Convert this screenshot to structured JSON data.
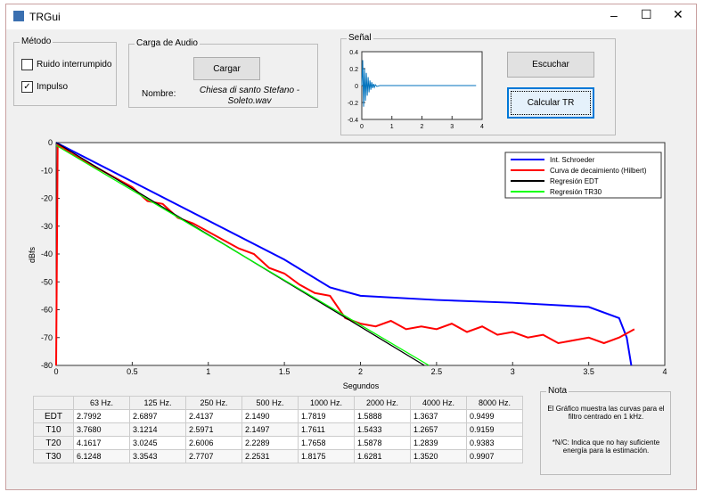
{
  "window": {
    "title": "TRGui"
  },
  "metodo": {
    "title": "Método",
    "options": [
      {
        "label": "Ruido interrumpido",
        "checked": false
      },
      {
        "label": "Impulso",
        "checked": true
      }
    ]
  },
  "audio": {
    "title": "Carga de Audio",
    "button": "Cargar",
    "name_label": "Nombre:",
    "name_value": "Chiesa di santo Stefano - Soleto.wav"
  },
  "signal": {
    "title": "Señal",
    "xlim": [
      0,
      4
    ],
    "xticks": [
      0,
      1,
      2,
      3,
      4
    ],
    "ylim": [
      -0.4,
      0.4
    ],
    "yticks": [
      -0.4,
      -0.2,
      0,
      0.2,
      0.4
    ],
    "color": "#0072bd",
    "x": [
      0,
      0.03,
      0.06,
      0.09,
      0.12,
      0.15,
      0.18,
      0.21,
      0.24,
      0.27,
      0.3,
      0.33,
      0.36,
      0.39,
      0.42,
      0.45,
      0.5,
      0.6,
      1,
      2,
      3,
      3.8
    ],
    "values": [
      0,
      0.3,
      -0.25,
      0.2,
      -0.18,
      0.15,
      -0.12,
      0.1,
      -0.08,
      0.06,
      -0.05,
      0.04,
      -0.03,
      0.02,
      -0.02,
      0.01,
      -0.01,
      0,
      0,
      0,
      0,
      0
    ]
  },
  "buttons": [
    "Escuchar",
    "Calcular TR"
  ],
  "main_plot": {
    "xlabel": "Segundos",
    "ylabel": "dBfs",
    "xlim": [
      0,
      4
    ],
    "xticks": [
      0,
      0.5,
      1,
      1.5,
      2,
      2.5,
      3,
      3.5,
      4
    ],
    "ylim": [
      -80,
      0
    ],
    "yticks": [
      -80,
      -70,
      -60,
      -50,
      -40,
      -30,
      -20,
      -10,
      0
    ],
    "series": [
      {
        "name": "Int. Schroeder",
        "color": "#0000ff",
        "x": [
          0,
          0.5,
          1,
          1.5,
          1.8,
          2,
          2.5,
          3,
          3.5,
          3.7,
          3.75,
          3.78
        ],
        "values": [
          0,
          -14,
          -28,
          -42,
          -52,
          -55,
          -56.5,
          -57.5,
          -59,
          -63,
          -70,
          -80
        ]
      },
      {
        "name": "Curva de decaimiento (Hilbert)",
        "color": "#ff0000",
        "x": [
          0,
          0.01,
          0.05,
          0.1,
          0.2,
          0.3,
          0.4,
          0.5,
          0.6,
          0.7,
          0.8,
          0.9,
          1,
          1.1,
          1.2,
          1.3,
          1.4,
          1.5,
          1.6,
          1.7,
          1.8,
          1.9,
          2,
          2.1,
          2.2,
          2.3,
          2.4,
          2.5,
          2.6,
          2.7,
          2.8,
          2.9,
          3,
          3.1,
          3.2,
          3.3,
          3.4,
          3.5,
          3.6,
          3.7,
          3.8
        ],
        "values": [
          -80,
          -1,
          -2,
          -4,
          -7,
          -10,
          -13,
          -16,
          -21,
          -22,
          -27,
          -29,
          -32,
          -35,
          -38,
          -40,
          -45,
          -47,
          -51,
          -54,
          -55,
          -63,
          -65,
          -66,
          -64,
          -67,
          -66,
          -67,
          -65,
          -68,
          -66,
          -69,
          -68,
          -70,
          -69,
          -72,
          -71,
          -70,
          -72,
          -70,
          -67
        ]
      },
      {
        "name": "Regresión EDT",
        "color": "#000000",
        "x": [
          0,
          2.42
        ],
        "values": [
          0,
          -80
        ]
      },
      {
        "name": "Regresión TR30",
        "color": "#00ff00",
        "x": [
          0,
          2.45
        ],
        "values": [
          -1,
          -80
        ]
      }
    ]
  },
  "table": {
    "columns": [
      "63 Hz.",
      "125 Hz.",
      "250 Hz.",
      "500 Hz.",
      "1000 Hz.",
      "2000 Hz.",
      "4000 Hz.",
      "8000 Hz."
    ],
    "rows": [
      {
        "label": "EDT",
        "values": [
          "2.7992",
          "2.6897",
          "2.4137",
          "2.1490",
          "1.7819",
          "1.5888",
          "1.3637",
          "0.9499"
        ]
      },
      {
        "label": "T10",
        "values": [
          "3.7680",
          "3.1214",
          "2.5971",
          "2.1497",
          "1.7611",
          "1.5433",
          "1.2657",
          "0.9159"
        ]
      },
      {
        "label": "T20",
        "values": [
          "4.1617",
          "3.0245",
          "2.6006",
          "2.2289",
          "1.7658",
          "1.5878",
          "1.2839",
          "0.9383"
        ]
      },
      {
        "label": "T30",
        "values": [
          "6.1248",
          "3.3543",
          "2.7707",
          "2.2531",
          "1.8175",
          "1.6281",
          "1.3520",
          "0.9907"
        ]
      }
    ]
  },
  "nota": {
    "title": "Nota",
    "lines": [
      "El Gráfico muestra las curvas para el filtro centrado en 1 kHz.",
      "*N/C: Indica que no hay suficiente energía para la estimación."
    ]
  }
}
